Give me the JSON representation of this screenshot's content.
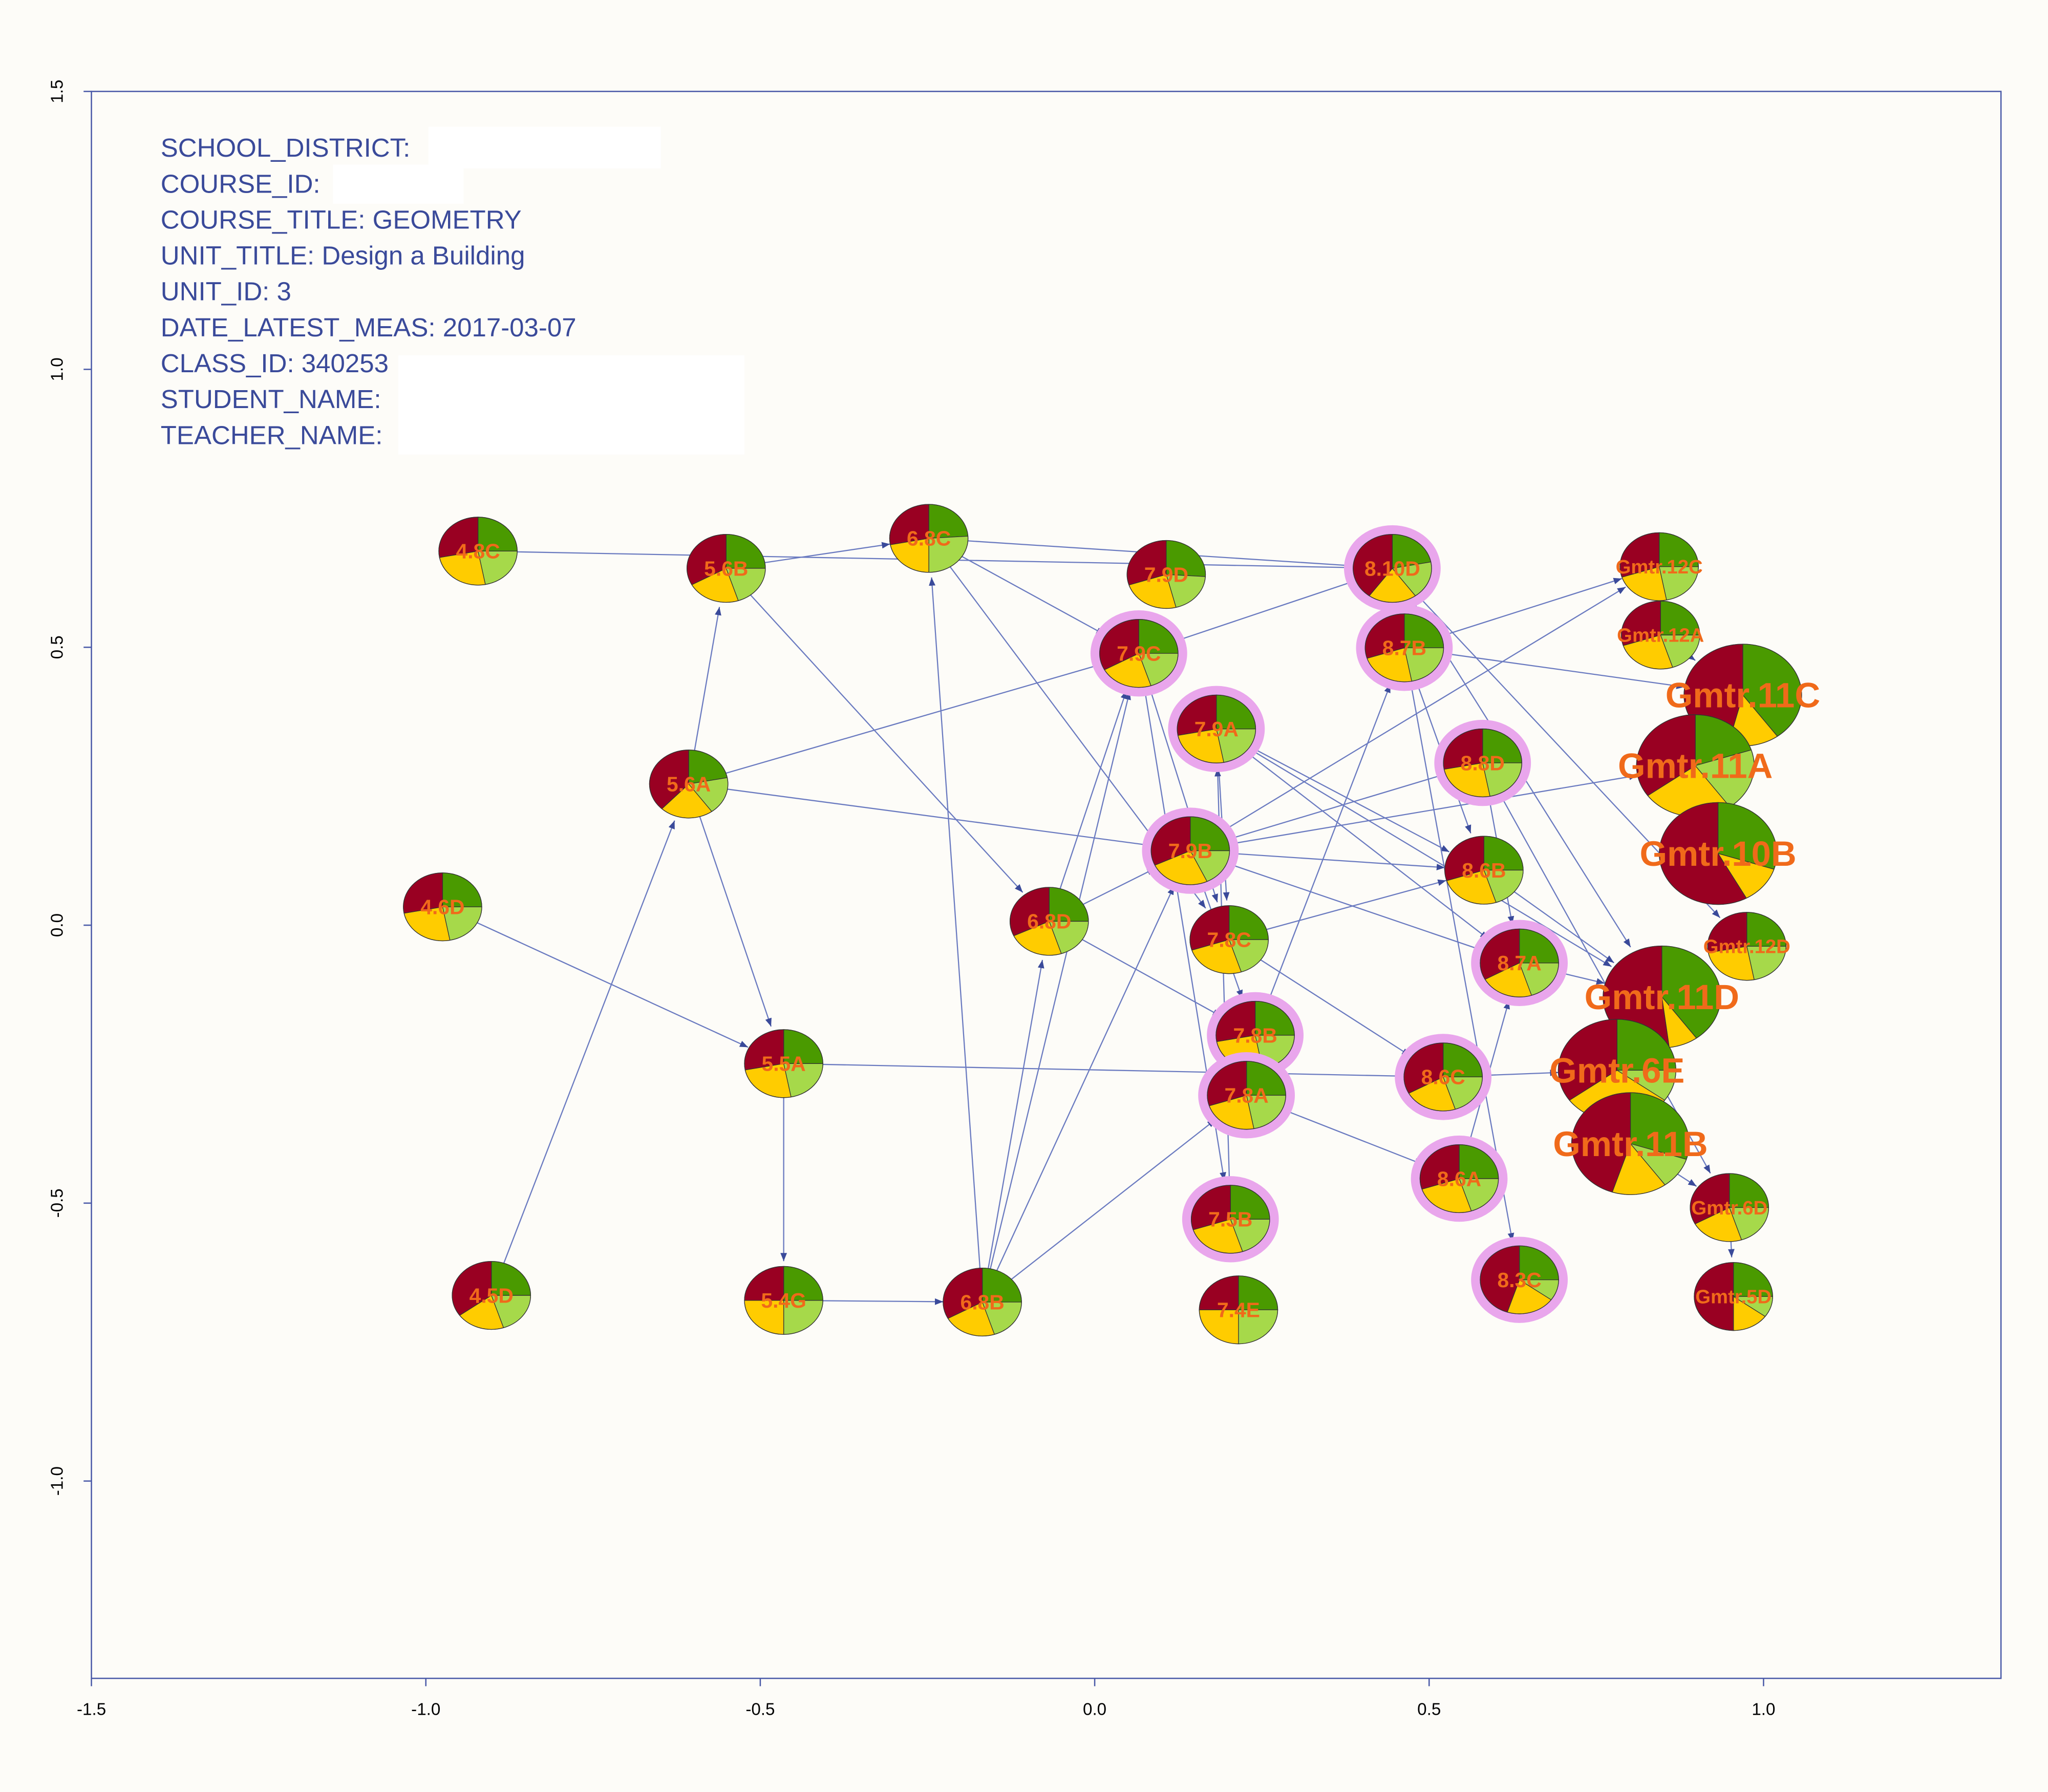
{
  "chart_data": {
    "type": "network",
    "info": [
      "SCHOOL_DISTRICT:",
      "COURSE_ID:",
      "COURSE_TITLE: GEOMETRY",
      "UNIT_TITLE: Design a Building",
      "UNIT_ID: 3",
      "DATE_LATEST_MEAS: 2017-03-07",
      "CLASS_ID: 340253",
      "STUDENT_NAME:",
      "TEACHER_NAME:"
    ],
    "xlim": [
      -1.5,
      1.355
    ],
    "ylim": [
      -1.355,
      1.5
    ],
    "xticks": [
      -1.5,
      {
        "value": -1,
        "label": "-1.0"
      },
      -0.5,
      {
        "value": 0,
        "label": "0.0"
      },
      0.5,
      {
        "value": 1,
        "label": "1.0"
      }
    ],
    "yticks": [
      {
        "value": -1,
        "label": "-1.0"
      },
      -0.5,
      {
        "value": 0,
        "label": "0.0"
      },
      0.5,
      {
        "value": 1,
        "label": "1.0"
      },
      1.5
    ],
    "slice_colors": [
      "#4a9a00",
      "#a6d94a",
      "#ffcc00",
      "#990022"
    ],
    "edge_color": "#6a7ac0",
    "label_color": "#f06a1a",
    "halo_color": "#e9a6ec",
    "nodes": [
      {
        "label": "4.8C",
        "x": -0.922,
        "y": 0.673,
        "slices": [
          25,
          22,
          25,
          28
        ],
        "halo": false,
        "size": "small"
      },
      {
        "label": "5.6B",
        "x": -0.551,
        "y": 0.642,
        "slices": [
          25,
          20,
          22,
          33
        ],
        "halo": false,
        "size": "small"
      },
      {
        "label": "6.8C",
        "x": -0.248,
        "y": 0.696,
        "slices": [
          24,
          26,
          22,
          28
        ],
        "halo": false,
        "size": "small"
      },
      {
        "label": "7.9D",
        "x": 0.107,
        "y": 0.631,
        "slices": [
          26,
          20,
          24,
          30
        ],
        "halo": false,
        "size": "small"
      },
      {
        "label": "8.10D",
        "x": 0.445,
        "y": 0.642,
        "slices": [
          22,
          18,
          20,
          40
        ],
        "halo": true,
        "size": "small"
      },
      {
        "label": "Gmtr.12C",
        "x": 0.844,
        "y": 0.645,
        "slices": [
          25,
          22,
          23,
          30
        ],
        "halo": false,
        "size": "small"
      },
      {
        "label": "Gmtr.12A",
        "x": 0.846,
        "y": 0.522,
        "slices": [
          25,
          20,
          25,
          30
        ],
        "halo": false,
        "size": "small"
      },
      {
        "label": "Gmtr.11C",
        "x": 0.969,
        "y": 0.414,
        "slices": [
          40,
          0,
          14,
          46
        ],
        "halo": false,
        "size": "large"
      },
      {
        "label": "7.9C",
        "x": 0.066,
        "y": 0.489,
        "slices": [
          25,
          20,
          22,
          33
        ],
        "halo": true,
        "size": "small"
      },
      {
        "label": "8.7B",
        "x": 0.463,
        "y": 0.499,
        "slices": [
          25,
          22,
          23,
          30
        ],
        "halo": true,
        "size": "small"
      },
      {
        "label": "7.9A",
        "x": 0.182,
        "y": 0.353,
        "slices": [
          25,
          22,
          25,
          28
        ],
        "halo": true,
        "size": "small"
      },
      {
        "label": "5.6A",
        "x": -0.607,
        "y": 0.254,
        "slices": [
          22,
          18,
          22,
          38
        ],
        "halo": false,
        "size": "small"
      },
      {
        "label": "8.8D",
        "x": 0.58,
        "y": 0.292,
        "slices": [
          25,
          22,
          25,
          28
        ],
        "halo": true,
        "size": "small"
      },
      {
        "label": "Gmtr.11A",
        "x": 0.898,
        "y": 0.287,
        "slices": [
          20,
          20,
          25,
          35
        ],
        "halo": false,
        "size": "large"
      },
      {
        "label": "7.9B",
        "x": 0.143,
        "y": 0.134,
        "slices": [
          25,
          18,
          25,
          32
        ],
        "halo": true,
        "size": "small"
      },
      {
        "label": "Gmtr.10B",
        "x": 0.932,
        "y": 0.129,
        "slices": [
          30,
          0,
          12,
          58
        ],
        "halo": false,
        "size": "large"
      },
      {
        "label": "8.6B",
        "x": 0.582,
        "y": 0.099,
        "slices": [
          25,
          20,
          25,
          30
        ],
        "halo": false,
        "size": "small"
      },
      {
        "label": "4.6D",
        "x": -0.975,
        "y": 0.033,
        "slices": [
          25,
          22,
          25,
          28
        ],
        "halo": false,
        "size": "small"
      },
      {
        "label": "6.8D",
        "x": -0.068,
        "y": 0.007,
        "slices": [
          25,
          20,
          23,
          32
        ],
        "halo": false,
        "size": "small"
      },
      {
        "label": "7.8C",
        "x": 0.201,
        "y": -0.026,
        "slices": [
          25,
          20,
          25,
          30
        ],
        "halo": false,
        "size": "small"
      },
      {
        "label": "Gmtr.12D",
        "x": 0.975,
        "y": -0.038,
        "slices": [
          25,
          22,
          25,
          28
        ],
        "halo": false,
        "size": "small"
      },
      {
        "label": "8.7A",
        "x": 0.635,
        "y": -0.068,
        "slices": [
          25,
          20,
          22,
          33
        ],
        "halo": true,
        "size": "small"
      },
      {
        "label": "Gmtr.11D",
        "x": 0.848,
        "y": -0.129,
        "slices": [
          40,
          0,
          8,
          52
        ],
        "halo": false,
        "size": "large"
      },
      {
        "label": "7.8B",
        "x": 0.24,
        "y": -0.198,
        "slices": [
          25,
          22,
          25,
          28
        ],
        "halo": true,
        "size": "small"
      },
      {
        "label": "5.5A",
        "x": -0.465,
        "y": -0.249,
        "slices": [
          25,
          22,
          25,
          28
        ],
        "halo": false,
        "size": "small"
      },
      {
        "label": "8.6C",
        "x": 0.521,
        "y": -0.273,
        "slices": [
          25,
          20,
          22,
          33
        ],
        "halo": true,
        "size": "small"
      },
      {
        "label": "Gmtr.6E",
        "x": 0.781,
        "y": -0.261,
        "slices": [
          25,
          10,
          30,
          35
        ],
        "halo": false,
        "size": "large"
      },
      {
        "label": "7.8A",
        "x": 0.227,
        "y": -0.306,
        "slices": [
          25,
          22,
          23,
          30
        ],
        "halo": true,
        "size": "small"
      },
      {
        "label": "Gmtr.11B",
        "x": 0.801,
        "y": -0.393,
        "slices": [
          30,
          10,
          15,
          45
        ],
        "halo": false,
        "size": "large"
      },
      {
        "label": "8.6A",
        "x": 0.545,
        "y": -0.456,
        "slices": [
          25,
          20,
          25,
          30
        ],
        "halo": true,
        "size": "small"
      },
      {
        "label": "Gmtr.6D",
        "x": 0.949,
        "y": -0.508,
        "slices": [
          25,
          20,
          22,
          33
        ],
        "halo": false,
        "size": "small"
      },
      {
        "label": "7.5B",
        "x": 0.203,
        "y": -0.529,
        "slices": [
          25,
          20,
          25,
          30
        ],
        "halo": true,
        "size": "small"
      },
      {
        "label": "8.3C",
        "x": 0.635,
        "y": -0.638,
        "slices": [
          25,
          10,
          20,
          45
        ],
        "halo": true,
        "size": "small"
      },
      {
        "label": "4.5D",
        "x": -0.902,
        "y": -0.666,
        "slices": [
          25,
          20,
          20,
          35
        ],
        "halo": false,
        "size": "small"
      },
      {
        "label": "5.4G",
        "x": -0.465,
        "y": -0.675,
        "slices": [
          25,
          25,
          25,
          25
        ],
        "halo": false,
        "size": "small"
      },
      {
        "label": "6.8B",
        "x": -0.168,
        "y": -0.678,
        "slices": [
          25,
          20,
          22,
          33
        ],
        "halo": false,
        "size": "small"
      },
      {
        "label": "7.4E",
        "x": 0.215,
        "y": -0.692,
        "slices": [
          25,
          25,
          25,
          25
        ],
        "halo": false,
        "size": "small"
      },
      {
        "label": "Gmtr.5D",
        "x": 0.955,
        "y": -0.668,
        "slices": [
          25,
          10,
          15,
          50
        ],
        "halo": false,
        "size": "small"
      }
    ],
    "edges": [
      [
        0,
        4
      ],
      [
        1,
        2
      ],
      [
        1,
        18
      ],
      [
        11,
        1
      ],
      [
        11,
        24
      ],
      [
        11,
        8
      ],
      [
        11,
        14
      ],
      [
        33,
        11
      ],
      [
        17,
        24
      ],
      [
        24,
        34
      ],
      [
        24,
        25
      ],
      [
        34,
        35
      ],
      [
        35,
        2
      ],
      [
        35,
        18
      ],
      [
        35,
        8
      ],
      [
        35,
        14
      ],
      [
        35,
        27
      ],
      [
        2,
        8
      ],
      [
        2,
        19
      ],
      [
        2,
        4
      ],
      [
        18,
        14
      ],
      [
        18,
        23
      ],
      [
        18,
        8
      ],
      [
        8,
        4
      ],
      [
        8,
        19
      ],
      [
        8,
        31
      ],
      [
        10,
        16
      ],
      [
        10,
        21
      ],
      [
        10,
        19
      ],
      [
        10,
        22
      ],
      [
        14,
        12
      ],
      [
        14,
        16
      ],
      [
        14,
        21
      ],
      [
        14,
        23
      ],
      [
        14,
        5
      ],
      [
        14,
        13
      ],
      [
        19,
        16
      ],
      [
        19,
        25
      ],
      [
        23,
        9
      ],
      [
        31,
        10
      ],
      [
        27,
        29
      ],
      [
        9,
        5
      ],
      [
        9,
        7
      ],
      [
        9,
        32
      ],
      [
        9,
        16
      ],
      [
        4,
        20
      ],
      [
        4,
        22
      ],
      [
        12,
        30
      ],
      [
        12,
        21
      ],
      [
        16,
        22
      ],
      [
        21,
        22
      ],
      [
        25,
        26
      ],
      [
        29,
        21
      ],
      [
        6,
        7
      ],
      [
        28,
        30
      ],
      [
        30,
        37
      ],
      [
        5,
        6
      ]
    ]
  }
}
